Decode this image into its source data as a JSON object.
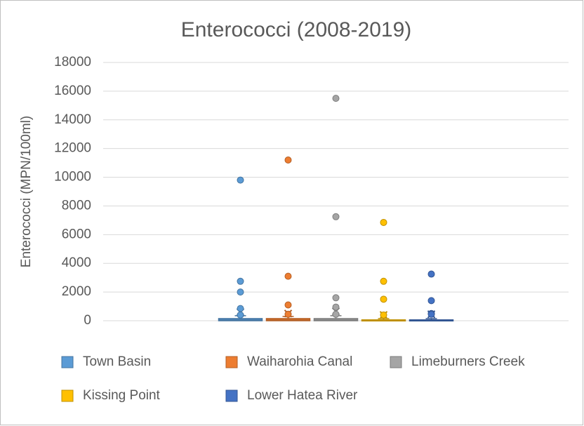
{
  "chart_data": {
    "type": "box",
    "title": "Enterococci (2008-2019)",
    "y_label": "Enterococci (MPN/100ml)",
    "ylim": [
      0,
      18000
    ],
    "yticks": [
      0,
      2000,
      4000,
      6000,
      8000,
      10000,
      12000,
      14000,
      16000,
      18000
    ],
    "grid": true,
    "legend": "bottom",
    "series": [
      {
        "name": "Town Basin",
        "color": "#5b9bd5",
        "min": 0,
        "q1": 0,
        "median": 50,
        "q3": 150,
        "max": 350,
        "mean": 600,
        "outliers": [
          9800,
          2750,
          2000,
          850,
          400
        ]
      },
      {
        "name": "Waiharohia Canal",
        "color": "#ed7d31",
        "min": 0,
        "q1": 0,
        "median": 50,
        "q3": 150,
        "max": 300,
        "mean": 500,
        "outliers": [
          11200,
          3100,
          1100,
          450
        ]
      },
      {
        "name": "Limeburners Creek",
        "color": "#a5a5a5",
        "min": 0,
        "q1": 0,
        "median": 50,
        "q3": 150,
        "max": 350,
        "mean": 650,
        "outliers": [
          15500,
          7250,
          1600,
          950,
          450
        ]
      },
      {
        "name": "Kissing Point",
        "color": "#ffc000",
        "min": 0,
        "q1": 0,
        "median": 20,
        "q3": 60,
        "max": 150,
        "mean": 400,
        "outliers": [
          6850,
          2750,
          1500,
          400
        ]
      },
      {
        "name": "Lower Hatea River",
        "color": "#4472c4",
        "min": 0,
        "q1": 0,
        "median": 20,
        "q3": 60,
        "max": 150,
        "mean": 450,
        "outliers": [
          3250,
          1400,
          500,
          450
        ]
      }
    ]
  }
}
